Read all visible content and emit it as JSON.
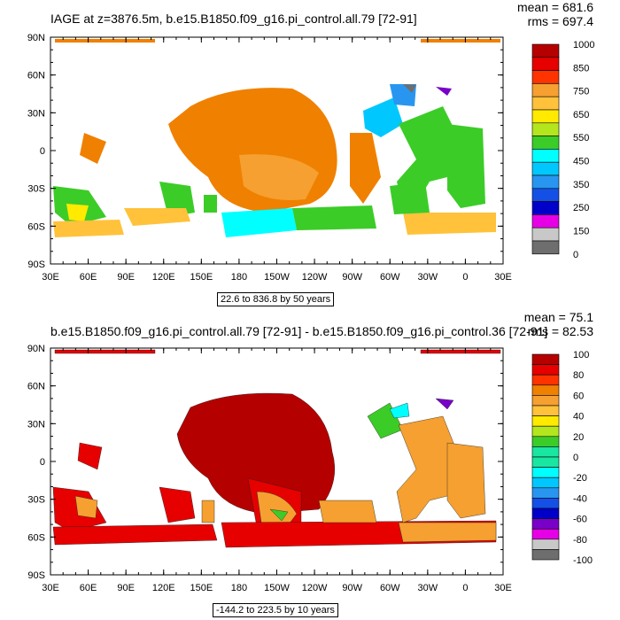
{
  "panels": [
    {
      "title": "IAGE at z=3876.5m, b.e15.B1850.f09_g16.pi_control.all.79 [72-91]",
      "mean": "mean = 681.6",
      "rms": "rms = 697.4",
      "range": "22.6 to 836.8 by 50 years",
      "colorbar_labels": [
        "1000",
        "850",
        "750",
        "650",
        "550",
        "450",
        "350",
        "250",
        "150",
        "0"
      ]
    },
    {
      "title": "b.e15.B1850.f09_g16.pi_control.all.79 [72-91] - b.e15.B1850.f09_g16.pi_control.36 [72-91]",
      "mean": "mean = 75.1",
      "rms": "rms = 82.53",
      "range": "-144.2 to 223.5 by 10 years",
      "colorbar_labels": [
        "100",
        "80",
        "60",
        "40",
        "20",
        "0",
        "-20",
        "-40",
        "-60",
        "-80",
        "-100"
      ]
    }
  ],
  "lat_labels": [
    "90N",
    "60N",
    "30N",
    "0",
    "30S",
    "60S",
    "90S"
  ],
  "lon_labels": [
    "30E",
    "60E",
    "90E",
    "120E",
    "150E",
    "180",
    "150W",
    "120W",
    "90W",
    "60W",
    "30W",
    "0",
    "30E"
  ],
  "colors": {
    "colorbar": [
      "#b50000",
      "#e60000",
      "#ff3300",
      "#f08000",
      "#f5a030",
      "#ffc23a",
      "#ffea00",
      "#b4e61e",
      "#3ccc28",
      "#19e6a0",
      "#00ffff",
      "#00c8ff",
      "#2896f0",
      "#1450e6",
      "#0000c8",
      "#7800c8",
      "#e600e6",
      "#c8c8c8",
      "#6e6e6e"
    ]
  }
}
